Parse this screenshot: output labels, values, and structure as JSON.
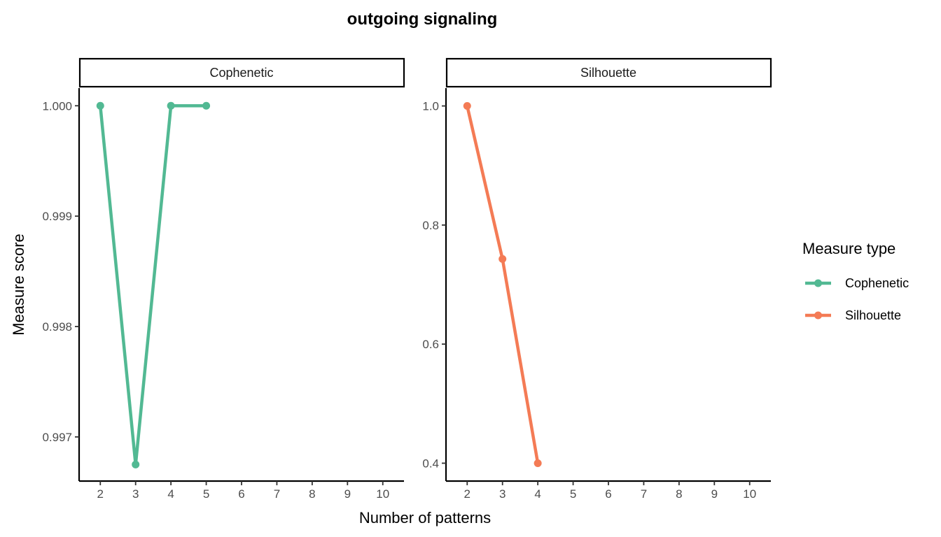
{
  "chart_data": {
    "type": "line",
    "title": "outgoing signaling",
    "xlabel": "Number of patterns",
    "ylabel": "Measure score",
    "legend": {
      "title": "Measure type",
      "placement": "right",
      "entries": [
        "Cophenetic",
        "Silhouette"
      ]
    },
    "grid": false,
    "x_ticks": [
      2,
      3,
      4,
      5,
      6,
      7,
      8,
      9,
      10
    ],
    "panels": [
      {
        "strip": "Cophenetic",
        "series": "Cophenetic",
        "color": "#52B993",
        "x": [
          2,
          3,
          4,
          5
        ],
        "y": [
          1.0,
          0.99675,
          1.0,
          1.0
        ],
        "xlim": [
          1.4,
          10.6
        ],
        "ylim": [
          0.9966,
          1.00016
        ],
        "y_ticks": [
          1.0,
          0.999,
          0.998,
          0.997
        ],
        "y_tick_labels": [
          "1.000",
          "0.999",
          "0.998",
          "0.997"
        ]
      },
      {
        "strip": "Silhouette",
        "series": "Silhouette",
        "color": "#F47B55",
        "x": [
          2,
          3,
          4
        ],
        "y": [
          1.0,
          0.743,
          0.4
        ],
        "xlim": [
          1.4,
          10.6
        ],
        "ylim": [
          0.37,
          1.03
        ],
        "y_ticks": [
          1.0,
          0.8,
          0.6,
          0.4
        ],
        "y_tick_labels": [
          "1.0",
          "0.8",
          "0.6",
          "0.4"
        ]
      }
    ]
  }
}
